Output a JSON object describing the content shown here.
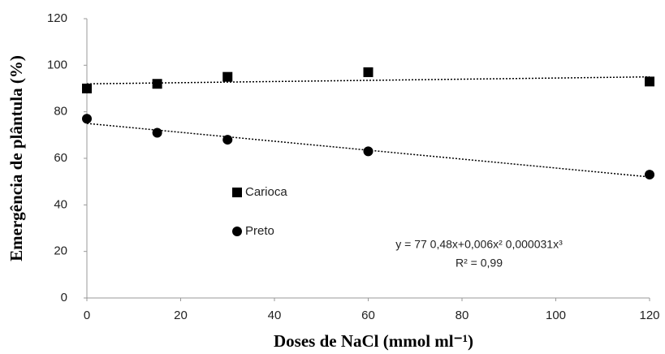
{
  "chart_data": {
    "type": "scatter",
    "x_label": "Doses de NaCl (mmol ml⁻¹)",
    "y_label": "Emergência de plântula (%)",
    "xlim": [
      0,
      120
    ],
    "xticks": [
      0,
      20,
      40,
      60,
      80,
      100,
      120
    ],
    "ylim": [
      0,
      120
    ],
    "yticks": [
      0,
      20,
      40,
      60,
      80,
      100,
      120
    ],
    "grid": false,
    "legend": "center-left",
    "series": [
      {
        "name": "Carioca",
        "color": "#000000",
        "marker": "square",
        "x": [
          0,
          15,
          30,
          60,
          120
        ],
        "values": [
          90,
          92,
          95,
          97,
          93
        ],
        "trend": {
          "x": [
            0,
            120
          ],
          "values": [
            92,
            95
          ]
        }
      },
      {
        "name": "Preto",
        "color": "#000000",
        "marker": "circle",
        "x": [
          0,
          15,
          30,
          60,
          120
        ],
        "values": [
          77,
          71,
          68,
          63,
          53
        ],
        "trend": {
          "x": [
            0,
            120
          ],
          "values": [
            75,
            52
          ]
        }
      }
    ],
    "annotations": [
      "y = 77 0,48x+0,006x² 0,000031x³",
      "R² = 0,99"
    ]
  }
}
